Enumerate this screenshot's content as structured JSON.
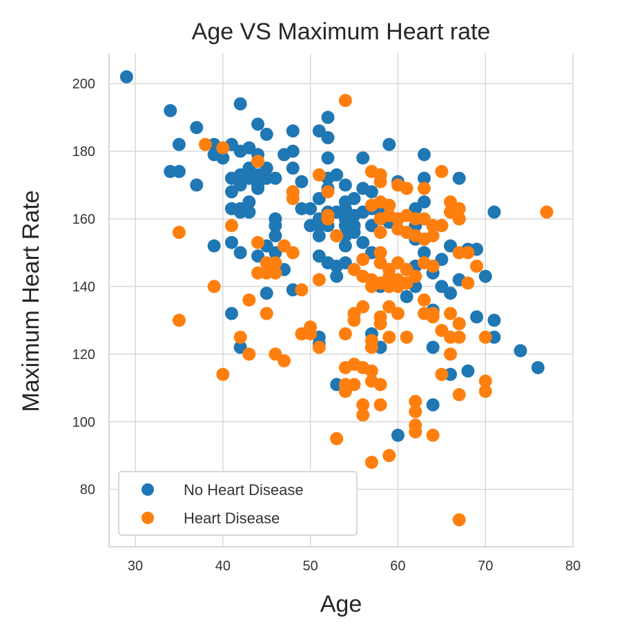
{
  "chart_data": {
    "type": "scatter",
    "title": "Age VS Maximum Heart rate",
    "xlabel": "Age",
    "ylabel": "Maximum Heart Rate",
    "xlim": [
      27,
      80
    ],
    "ylim": [
      63,
      209
    ],
    "xticks": [
      30,
      40,
      50,
      60,
      70,
      80
    ],
    "yticks": [
      80,
      100,
      120,
      140,
      160,
      180,
      200
    ],
    "grid": true,
    "legend_position": "lower-left",
    "series": [
      {
        "name": "No Heart Disease",
        "color": "#1f77b4",
        "points": [
          [
            29,
            202
          ],
          [
            34,
            192
          ],
          [
            34,
            174
          ],
          [
            35,
            174
          ],
          [
            35,
            182
          ],
          [
            37,
            187
          ],
          [
            37,
            170
          ],
          [
            39,
            179
          ],
          [
            39,
            182
          ],
          [
            39,
            152
          ],
          [
            40,
            178
          ],
          [
            41,
            182
          ],
          [
            41,
            172
          ],
          [
            41,
            168
          ],
          [
            41,
            163
          ],
          [
            41,
            153
          ],
          [
            41,
            132
          ],
          [
            42,
            194
          ],
          [
            42,
            173
          ],
          [
            42,
            180
          ],
          [
            42,
            170
          ],
          [
            42,
            163
          ],
          [
            42,
            162
          ],
          [
            42,
            150
          ],
          [
            42,
            122
          ],
          [
            43,
            181
          ],
          [
            43,
            175
          ],
          [
            43,
            172
          ],
          [
            43,
            165
          ],
          [
            43,
            162
          ],
          [
            44,
            188
          ],
          [
            44,
            179
          ],
          [
            44,
            173
          ],
          [
            44,
            169
          ],
          [
            44,
            170
          ],
          [
            44,
            149
          ],
          [
            45,
            185
          ],
          [
            45,
            175
          ],
          [
            45,
            172
          ],
          [
            45,
            152
          ],
          [
            45,
            138
          ],
          [
            46,
            172
          ],
          [
            46,
            160
          ],
          [
            46,
            158
          ],
          [
            46,
            155
          ],
          [
            46,
            150
          ],
          [
            47,
            179
          ],
          [
            47,
            145
          ],
          [
            48,
            186
          ],
          [
            48,
            180
          ],
          [
            48,
            175
          ],
          [
            48,
            168
          ],
          [
            48,
            139
          ],
          [
            49,
            171
          ],
          [
            49,
            163
          ],
          [
            50,
            163
          ],
          [
            50,
            158
          ],
          [
            51,
            186
          ],
          [
            51,
            166
          ],
          [
            51,
            160
          ],
          [
            51,
            158
          ],
          [
            51,
            155
          ],
          [
            51,
            149
          ],
          [
            51,
            123
          ],
          [
            51,
            125
          ],
          [
            52,
            190
          ],
          [
            52,
            184
          ],
          [
            52,
            178
          ],
          [
            52,
            172
          ],
          [
            52,
            169
          ],
          [
            52,
            162
          ],
          [
            52,
            158
          ],
          [
            52,
            147
          ],
          [
            53,
            173
          ],
          [
            53,
            162
          ],
          [
            53,
            155
          ],
          [
            53,
            146
          ],
          [
            53,
            143
          ],
          [
            53,
            111
          ],
          [
            54,
            170
          ],
          [
            54,
            165
          ],
          [
            54,
            160
          ],
          [
            54,
            163
          ],
          [
            54,
            158
          ],
          [
            54,
            155
          ],
          [
            54,
            152
          ],
          [
            54,
            147
          ],
          [
            54,
            109
          ],
          [
            55,
            166
          ],
          [
            55,
            161
          ],
          [
            55,
            156
          ],
          [
            55,
            158
          ],
          [
            56,
            178
          ],
          [
            56,
            169
          ],
          [
            56,
            162
          ],
          [
            56,
            153
          ],
          [
            57,
            168
          ],
          [
            57,
            163
          ],
          [
            57,
            158
          ],
          [
            57,
            150
          ],
          [
            57,
            126
          ],
          [
            58,
            173
          ],
          [
            58,
            162
          ],
          [
            58,
            140
          ],
          [
            58,
            122
          ],
          [
            59,
            182
          ],
          [
            59,
            164
          ],
          [
            59,
            159
          ],
          [
            59,
            145
          ],
          [
            60,
            171
          ],
          [
            60,
            160
          ],
          [
            60,
            96
          ],
          [
            61,
            145
          ],
          [
            61,
            137
          ],
          [
            62,
            163
          ],
          [
            62,
            158
          ],
          [
            62,
            154
          ],
          [
            62,
            146
          ],
          [
            62,
            140
          ],
          [
            63,
            179
          ],
          [
            63,
            172
          ],
          [
            63,
            165
          ],
          [
            63,
            154
          ],
          [
            63,
            150
          ],
          [
            64,
            158
          ],
          [
            64,
            144
          ],
          [
            64,
            133
          ],
          [
            64,
            122
          ],
          [
            64,
            105
          ],
          [
            65,
            158
          ],
          [
            65,
            148
          ],
          [
            65,
            140
          ],
          [
            66,
            152
          ],
          [
            66,
            138
          ],
          [
            66,
            114
          ],
          [
            67,
            172
          ],
          [
            67,
            160
          ],
          [
            67,
            150
          ],
          [
            67,
            142
          ],
          [
            67,
            129
          ],
          [
            68,
            151
          ],
          [
            68,
            115
          ],
          [
            69,
            151
          ],
          [
            69,
            131
          ],
          [
            70,
            143
          ],
          [
            71,
            162
          ],
          [
            71,
            130
          ],
          [
            71,
            125
          ],
          [
            74,
            121
          ],
          [
            76,
            116
          ]
        ]
      },
      {
        "name": "Heart Disease",
        "color": "#ff7f0e",
        "points": [
          [
            35,
            156
          ],
          [
            35,
            130
          ],
          [
            38,
            182
          ],
          [
            39,
            140
          ],
          [
            40,
            181
          ],
          [
            40,
            114
          ],
          [
            41,
            158
          ],
          [
            42,
            125
          ],
          [
            43,
            136
          ],
          [
            43,
            120
          ],
          [
            44,
            177
          ],
          [
            44,
            153
          ],
          [
            44,
            144
          ],
          [
            45,
            147
          ],
          [
            45,
            144
          ],
          [
            45,
            132
          ],
          [
            46,
            147
          ],
          [
            46,
            144
          ],
          [
            46,
            120
          ],
          [
            47,
            152
          ],
          [
            47,
            118
          ],
          [
            48,
            168
          ],
          [
            48,
            166
          ],
          [
            48,
            150
          ],
          [
            49,
            139
          ],
          [
            49,
            126
          ],
          [
            50,
            128
          ],
          [
            50,
            126
          ],
          [
            51,
            173
          ],
          [
            51,
            142
          ],
          [
            51,
            122
          ],
          [
            52,
            168
          ],
          [
            52,
            161
          ],
          [
            52,
            160
          ],
          [
            53,
            155
          ],
          [
            53,
            95
          ],
          [
            54,
            195
          ],
          [
            54,
            126
          ],
          [
            54,
            116
          ],
          [
            54,
            109
          ],
          [
            54,
            111
          ],
          [
            55,
            145
          ],
          [
            55,
            132
          ],
          [
            55,
            130
          ],
          [
            55,
            117
          ],
          [
            55,
            111
          ],
          [
            56,
            148
          ],
          [
            56,
            143
          ],
          [
            56,
            134
          ],
          [
            56,
            116
          ],
          [
            56,
            105
          ],
          [
            56,
            102
          ],
          [
            57,
            174
          ],
          [
            57,
            164
          ],
          [
            57,
            142
          ],
          [
            57,
            140
          ],
          [
            57,
            124
          ],
          [
            57,
            122
          ],
          [
            57,
            115
          ],
          [
            57,
            112
          ],
          [
            57,
            88
          ],
          [
            58,
            173
          ],
          [
            58,
            171
          ],
          [
            58,
            165
          ],
          [
            58,
            160
          ],
          [
            58,
            156
          ],
          [
            58,
            150
          ],
          [
            58,
            147
          ],
          [
            58,
            141
          ],
          [
            58,
            131
          ],
          [
            58,
            129
          ],
          [
            58,
            111
          ],
          [
            58,
            105
          ],
          [
            59,
            164
          ],
          [
            59,
            161
          ],
          [
            59,
            145
          ],
          [
            59,
            143
          ],
          [
            59,
            140
          ],
          [
            59,
            134
          ],
          [
            59,
            125
          ],
          [
            59,
            90
          ],
          [
            60,
            170
          ],
          [
            60,
            160
          ],
          [
            60,
            157
          ],
          [
            60,
            147
          ],
          [
            60,
            142
          ],
          [
            60,
            140
          ],
          [
            60,
            132
          ],
          [
            61,
            169
          ],
          [
            61,
            161
          ],
          [
            61,
            156
          ],
          [
            61,
            145
          ],
          [
            61,
            141
          ],
          [
            61,
            125
          ],
          [
            62,
            160
          ],
          [
            62,
            155
          ],
          [
            62,
            143
          ],
          [
            62,
            106
          ],
          [
            62,
            103
          ],
          [
            62,
            99
          ],
          [
            62,
            97
          ],
          [
            63,
            169
          ],
          [
            63,
            160
          ],
          [
            63,
            154
          ],
          [
            63,
            147
          ],
          [
            63,
            136
          ],
          [
            63,
            132
          ],
          [
            64,
            158
          ],
          [
            64,
            155
          ],
          [
            64,
            146
          ],
          [
            64,
            132
          ],
          [
            64,
            131
          ],
          [
            64,
            96
          ],
          [
            65,
            174
          ],
          [
            65,
            158
          ],
          [
            65,
            127
          ],
          [
            65,
            114
          ],
          [
            66,
            165
          ],
          [
            66,
            162
          ],
          [
            66,
            132
          ],
          [
            66,
            125
          ],
          [
            66,
            120
          ],
          [
            67,
            163
          ],
          [
            67,
            160
          ],
          [
            67,
            150
          ],
          [
            67,
            129
          ],
          [
            67,
            125
          ],
          [
            67,
            108
          ],
          [
            67,
            71
          ],
          [
            68,
            150
          ],
          [
            68,
            141
          ],
          [
            69,
            146
          ],
          [
            70,
            125
          ],
          [
            70,
            112
          ],
          [
            70,
            109
          ],
          [
            77,
            162
          ]
        ]
      }
    ]
  }
}
